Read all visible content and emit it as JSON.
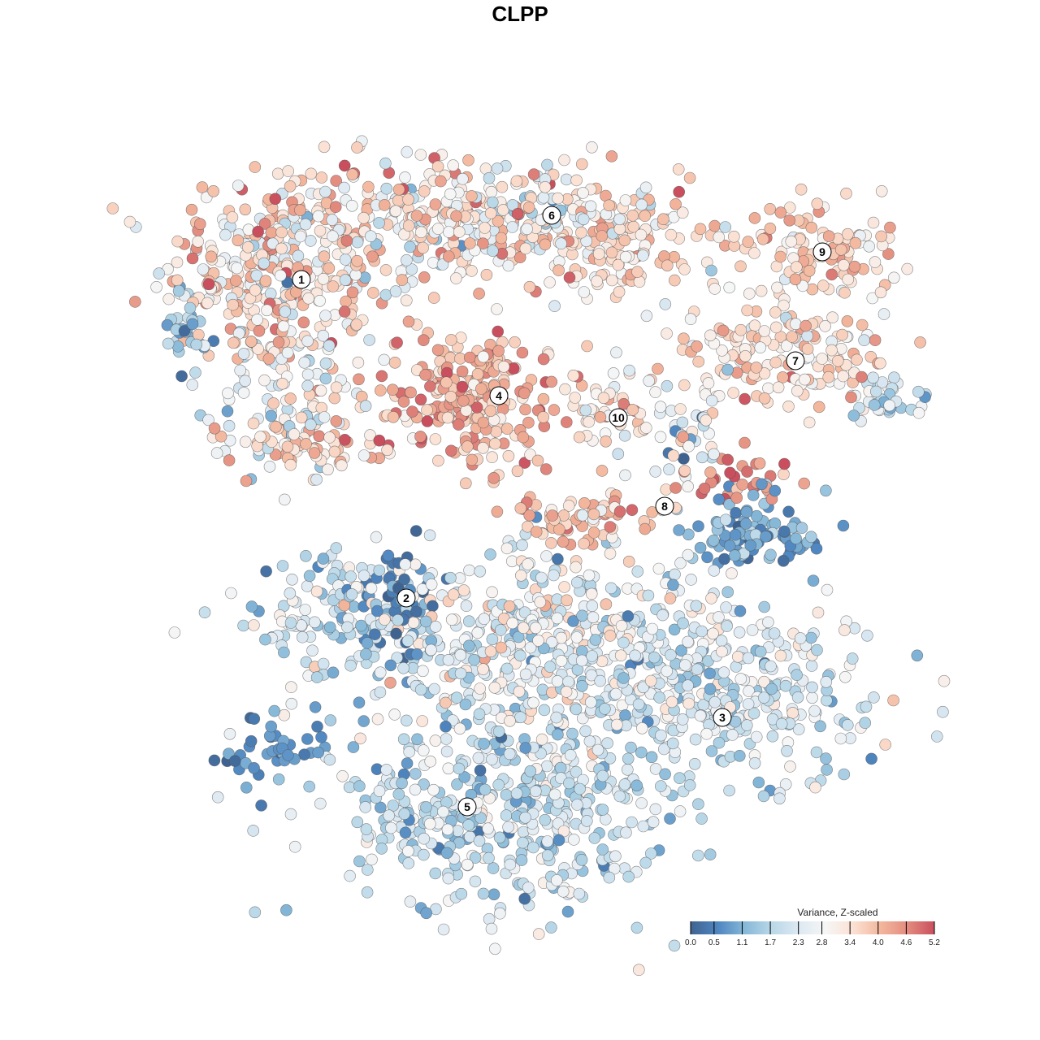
{
  "chart_data": {
    "type": "scatter",
    "title": "CLPP",
    "xlabel": "",
    "ylabel": "",
    "axes_visible": false,
    "grid": false,
    "xlim": [
      -45,
      50
    ],
    "ylim": [
      -46,
      46
    ],
    "color_legend": {
      "title": "Variance, Z-scaled",
      "placement": "bottom-right",
      "ticks": [
        "0.0",
        "0.5",
        "1.1",
        "1.7",
        "2.3",
        "2.8",
        "3.4",
        "4.0",
        "4.6",
        "5.2"
      ],
      "range": [
        0,
        5.2
      ],
      "colors": [
        "#3f6390",
        "#4f86c0",
        "#86b8d8",
        "#b9d8e8",
        "#dde9f2",
        "#f6f6f6",
        "#fbe1d3",
        "#f3b79d",
        "#e38c7f",
        "#c94f5e"
      ]
    },
    "cluster_labels": [
      {
        "label": "1",
        "x": -26.9,
        "y": 29.6
      },
      {
        "label": "2",
        "x": -14.0,
        "y": -9.6
      },
      {
        "label": "3",
        "x": 24.9,
        "y": -24.3
      },
      {
        "label": "4",
        "x": -2.6,
        "y": 15.3
      },
      {
        "label": "5",
        "x": -6.5,
        "y": -35.3
      },
      {
        "label": "6",
        "x": 3.9,
        "y": 37.5
      },
      {
        "label": "7",
        "x": 33.9,
        "y": 19.6
      },
      {
        "label": "8",
        "x": 17.8,
        "y": 1.7
      },
      {
        "label": "9",
        "x": 37.2,
        "y": 33.0
      },
      {
        "label": "10",
        "x": 12.1,
        "y": 12.6
      }
    ],
    "point_groups": [
      {
        "cluster": "1",
        "x": -30,
        "y": 31,
        "sx": 7,
        "sy": 5,
        "n": 260,
        "mean": 3.5,
        "sd": 0.8
      },
      {
        "cluster": "1",
        "x": -29,
        "y": 19,
        "sx": 5,
        "sy": 6,
        "n": 150,
        "mean": 2.9,
        "sd": 0.8
      },
      {
        "cluster": "1",
        "x": -28,
        "y": 9,
        "sx": 4,
        "sy": 2,
        "n": 60,
        "mean": 3.5,
        "sd": 0.5
      },
      {
        "cluster": "1",
        "x": -41,
        "y": 23,
        "sx": 1.5,
        "sy": 3,
        "n": 30,
        "mean": 1.4,
        "sd": 0.6
      },
      {
        "cluster": "6",
        "x": -6,
        "y": 37,
        "sx": 13,
        "sy": 4,
        "n": 420,
        "mean": 3.2,
        "sd": 0.8
      },
      {
        "cluster": "6",
        "x": 12,
        "y": 34,
        "sx": 5,
        "sy": 3,
        "n": 110,
        "mean": 3.5,
        "sd": 0.5
      },
      {
        "cluster": "9",
        "x": 37,
        "y": 33,
        "sx": 5,
        "sy": 3,
        "n": 110,
        "mean": 3.6,
        "sd": 0.5
      },
      {
        "cluster": "7",
        "x": 32,
        "y": 21,
        "sx": 7,
        "sy": 3,
        "n": 160,
        "mean": 3.4,
        "sd": 0.6
      },
      {
        "cluster": "7",
        "x": 45,
        "y": 15,
        "sx": 2.5,
        "sy": 1.5,
        "n": 40,
        "mean": 2.2,
        "sd": 0.5
      },
      {
        "cluster": "4",
        "x": -6,
        "y": 15,
        "sx": 6,
        "sy": 4.5,
        "n": 260,
        "mean": 4.0,
        "sd": 0.6
      },
      {
        "cluster": "10",
        "x": 12,
        "y": 13,
        "sx": 2.5,
        "sy": 3,
        "n": 50,
        "mean": 3.4,
        "sd": 0.6
      },
      {
        "cluster": "8",
        "x": 8,
        "y": 0,
        "sx": 5,
        "sy": 2,
        "n": 70,
        "mean": 3.9,
        "sd": 0.5
      },
      {
        "cluster": "8",
        "x": 28,
        "y": 5,
        "sx": 4,
        "sy": 1.2,
        "n": 30,
        "mean": 4.6,
        "sd": 0.4
      },
      {
        "cluster": "8",
        "x": 29,
        "y": -2,
        "sx": 4.5,
        "sy": 2.5,
        "n": 100,
        "mean": 1.0,
        "sd": 0.5
      },
      {
        "cluster": "8",
        "x": 21,
        "y": 10,
        "sx": 2.5,
        "sy": 3,
        "n": 50,
        "mean": 2.5,
        "sd": 1.0
      },
      {
        "cluster": "2",
        "x": -22,
        "y": -12,
        "sx": 6,
        "sy": 4,
        "n": 150,
        "mean": 2.0,
        "sd": 0.7
      },
      {
        "cluster": "2",
        "x": -15,
        "y": -9,
        "sx": 2.5,
        "sy": 3,
        "n": 50,
        "mean": 0.4,
        "sd": 0.3
      },
      {
        "cluster": "3",
        "x": 26,
        "y": -21,
        "sx": 10,
        "sy": 5,
        "n": 300,
        "mean": 2.2,
        "sd": 0.6
      },
      {
        "cluster": "3",
        "x": 4,
        "y": -16,
        "sx": 11,
        "sy": 7,
        "n": 500,
        "mean": 2.4,
        "sd": 0.7
      },
      {
        "cluster": "5",
        "x": -2,
        "y": -36,
        "sx": 11,
        "sy": 6,
        "n": 450,
        "mean": 2.0,
        "sd": 0.6
      },
      {
        "cluster": "5",
        "x": -30,
        "y": -28,
        "sx": 4,
        "sy": 2,
        "n": 40,
        "mean": 0.7,
        "sd": 0.4
      }
    ]
  }
}
